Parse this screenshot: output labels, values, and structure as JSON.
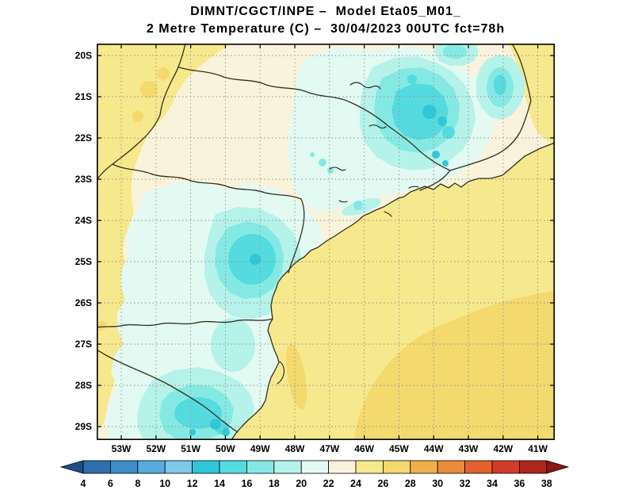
{
  "title": {
    "line1": "DIMNT/CGCT/INPE –  Model Eta05_M01_",
    "line2": "2 Metre Temperature (C) –  30/04/2023 00UTC fct=78h"
  },
  "map": {
    "lat_labels": [
      "20S",
      "21S",
      "22S",
      "23S",
      "24S",
      "25S",
      "26S",
      "27S",
      "28S",
      "29S"
    ],
    "lon_labels": [
      "53W",
      "52W",
      "51W",
      "50W",
      "49W",
      "48W",
      "47W",
      "46W",
      "45W",
      "44W",
      "43W",
      "42W",
      "41W"
    ]
  },
  "colorbar": {
    "tick_labels": [
      "4",
      "6",
      "8",
      "10",
      "12",
      "14",
      "16",
      "18",
      "20",
      "22",
      "24",
      "26",
      "28",
      "30",
      "32",
      "34",
      "36",
      "38"
    ],
    "arrow_left": "#1D4F86",
    "arrow_right": "#8C1712",
    "segments": [
      "#2F6FAD",
      "#3E8EC8",
      "#58ABDC",
      "#7EC8EA",
      "#2FC8D8",
      "#55DBDF",
      "#85E9E3",
      "#B5F2EA",
      "#E2FAF2",
      "#FAF3DC",
      "#F6E88C",
      "#F3D96E",
      "#F0B049",
      "#EA8C3C",
      "#E1622F",
      "#D23B27",
      "#AF261D"
    ]
  },
  "chart_data": {
    "type": "heatmap",
    "title": "2 Metre Temperature (C)",
    "institution_model": "DIMNT/CGCT/INPE Model Eta05_M01_",
    "valid_time": "30/04/2023 00UTC fct=78h",
    "lat_ticks": [
      "20S",
      "21S",
      "22S",
      "23S",
      "24S",
      "25S",
      "26S",
      "27S",
      "28S",
      "29S"
    ],
    "lon_ticks": [
      "53W",
      "52W",
      "51W",
      "50W",
      "49W",
      "48W",
      "47W",
      "46W",
      "45W",
      "44W",
      "43W",
      "42W",
      "41W"
    ],
    "colorbar_values_c": [
      4,
      6,
      8,
      10,
      12,
      14,
      16,
      18,
      20,
      22,
      24,
      26,
      28,
      30,
      32,
      34,
      36,
      38
    ],
    "units": "C",
    "field_regions": [
      {
        "region": "west edge of domain (Mato Grosso do Sul)",
        "temp_c": "24-26"
      },
      {
        "region": "northwest / north land band",
        "temp_c": "22-24"
      },
      {
        "region": "south Minas Gerais highlands (cyan blobs)",
        "temp_c": "12-18"
      },
      {
        "region": "east Sao Paulo and interior Rio area",
        "temp_c": "18-22"
      },
      {
        "region": "central-south highlands (Parana)",
        "temp_c": "14-18"
      },
      {
        "region": "far south land (SC/RS border)",
        "temp_c": "12-18"
      },
      {
        "region": "near right edge strip (north of coast)",
        "temp_c": "24-26"
      },
      {
        "region": "Atlantic ocean nearshore",
        "temp_c": "24-26"
      },
      {
        "region": "open Atlantic, southeast of coast",
        "temp_c": "26-28"
      }
    ]
  }
}
